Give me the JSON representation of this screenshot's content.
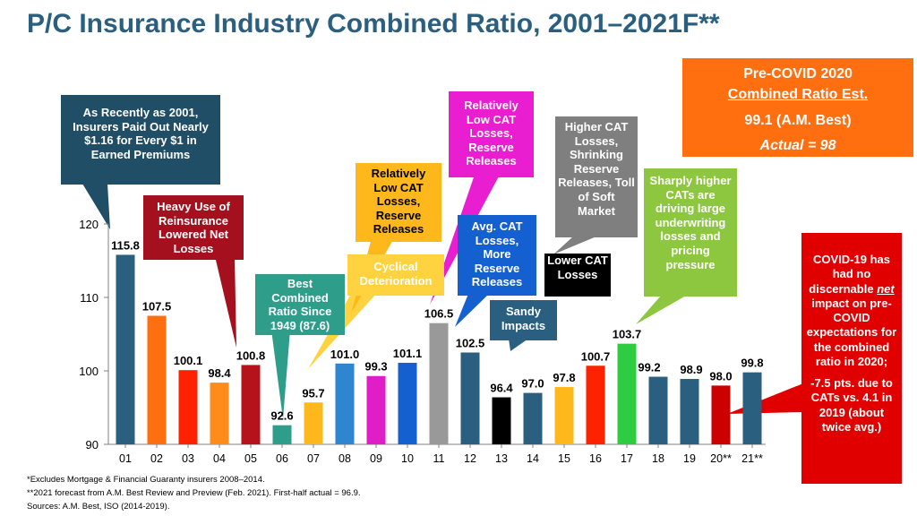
{
  "title": "P/C Insurance Industry Combined Ratio, 2001–2021F**",
  "chart_data": {
    "type": "bar",
    "categories": [
      "01",
      "02",
      "03",
      "04",
      "05",
      "06",
      "07",
      "08",
      "09",
      "10",
      "11",
      "12",
      "13",
      "14",
      "15",
      "16",
      "17",
      "18",
      "19",
      "20**",
      "21**"
    ],
    "values": [
      115.8,
      107.5,
      100.1,
      98.4,
      100.8,
      92.6,
      95.7,
      101.0,
      99.3,
      101.1,
      106.5,
      102.5,
      96.4,
      97.0,
      97.8,
      100.7,
      103.7,
      99.2,
      98.9,
      98.0,
      99.8
    ],
    "labels": [
      "115.8",
      "107.5",
      "100.1",
      "98.4",
      "100.8",
      "92.6",
      "95.7",
      "101.0",
      "99.3",
      "101.1",
      "106.5",
      "102.5",
      "96.4",
      "97.0",
      "97.8",
      "100.7",
      "103.7",
      "99.2",
      "98.9",
      "98.0",
      "99.8"
    ],
    "colors": [
      "#2b5f7f",
      "#ff6f0f",
      "#ff2200",
      "#ff8c1a",
      "#b5121b",
      "#2e9e8a",
      "#ffb81c",
      "#2e86d0",
      "#e01ec8",
      "#1560d0",
      "#999999",
      "#2b5f7f",
      "#000000",
      "#2b5f7f",
      "#ffb81c",
      "#ff2200",
      "#2ecc40",
      "#2b5f7f",
      "#2b5f7f",
      "#cc0000",
      "#2b5f7f"
    ],
    "ylim": [
      90,
      120
    ],
    "yticks": [
      "90",
      "100",
      "110",
      "120"
    ],
    "xlabel": "",
    "ylabel": "",
    "grid": false,
    "legend": "none"
  },
  "callouts": {
    "insurers_paid": "As Recently as 2001, Insurers Paid Out Nearly $1.16 for Every $1 in Earned Premiums",
    "reinsurance": "Heavy Use of Reinsurance Lowered Net Losses",
    "best_ratio": "Best Combined Ratio Since 1949 (87.6)",
    "low_cat_1": "Relatively Low CAT Losses, Reserve Releases",
    "cyclical": "Cyclical Deterioration",
    "low_cat_2": "Relatively Low CAT Losses, Reserve Releases",
    "avg_cat": "Avg. CAT Losses, More Reserve Releases",
    "higher_cat": "Higher CAT Losses, Shrinking Reserve Releases, Toll of Soft Market",
    "sandy": "Sandy Impacts",
    "lower_cat": "Lower CAT Losses",
    "sharply": "Sharply higher CATs are driving large underwriting losses and pricing pressure"
  },
  "precovid": {
    "line1": "Pre-COVID 2020",
    "line2": "Combined Ratio Est.",
    "line3": "99.1 (A.M. Best)",
    "line4": "Actual = 98"
  },
  "covid": {
    "part1": "COVID-19 has had no discernable",
    "net": "net",
    "part2": "impact on pre-COVID expectations for the combined ratio in 2020;",
    "part3": "-7.5 pts. due to CATs vs. 4.1 in 2019 (about twice avg.)"
  },
  "footnotes": {
    "f1": "*Excludes Mortgage & Financial Guaranty insurers 2008–2014.",
    "f2": "**2021 forecast from A.M. Best Review and Preview (Feb. 2021). First-half actual = 96.9.",
    "f3": "Sources: A.M. Best, ISO (2014-2019)."
  }
}
